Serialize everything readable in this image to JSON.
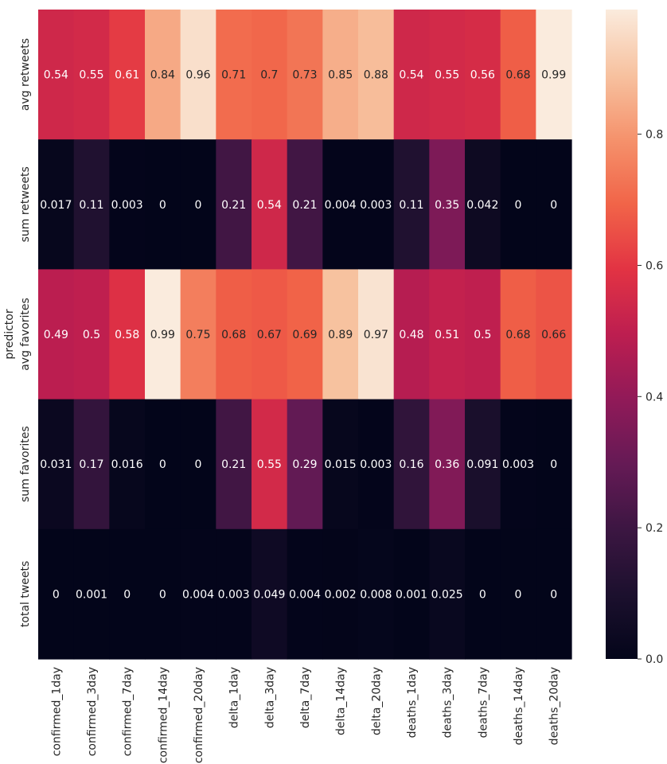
{
  "chart_data": {
    "type": "heatmap",
    "ylabel": "predictor",
    "xlabel": "",
    "columns": [
      "confirmed_1day",
      "confirmed_3day",
      "confirmed_7day",
      "confirmed_14day",
      "confirmed_20day",
      "delta_1day",
      "delta_3day",
      "delta_7day",
      "delta_14day",
      "delta_20day",
      "deaths_1day",
      "deaths_3day",
      "deaths_7day",
      "deaths_14day",
      "deaths_20day"
    ],
    "rows": [
      "avg retweets",
      "sum retweets",
      "avg favorites",
      "sum favorites",
      "total tweets"
    ],
    "values": [
      [
        0.54,
        0.55,
        0.61,
        0.84,
        0.96,
        0.71,
        0.7,
        0.73,
        0.85,
        0.88,
        0.54,
        0.55,
        0.56,
        0.68,
        0.99
      ],
      [
        0.017,
        0.11,
        0.003,
        0,
        0,
        0.21,
        0.54,
        0.21,
        0.004,
        0.003,
        0.11,
        0.35,
        0.042,
        0,
        0
      ],
      [
        0.49,
        0.5,
        0.58,
        0.99,
        0.75,
        0.68,
        0.67,
        0.69,
        0.89,
        0.97,
        0.48,
        0.51,
        0.5,
        0.68,
        0.66
      ],
      [
        0.031,
        0.17,
        0.016,
        0,
        0,
        0.21,
        0.55,
        0.29,
        0.015,
        0.003,
        0.16,
        0.36,
        0.091,
        0.003,
        0
      ],
      [
        0,
        0.001,
        0,
        0,
        0.004,
        0.003,
        0.049,
        0.004,
        0.002,
        0.008,
        0.001,
        0.025,
        0,
        0,
        0
      ]
    ],
    "colorbar": {
      "min": 0,
      "max": 0.99,
      "ticks": [
        0,
        0.2,
        0.4,
        0.6,
        0.8
      ],
      "tick_labels": [
        "0.0",
        "0.2",
        "0.4",
        "0.6",
        "0.8"
      ],
      "colormap": "rocket"
    },
    "grid": false
  }
}
